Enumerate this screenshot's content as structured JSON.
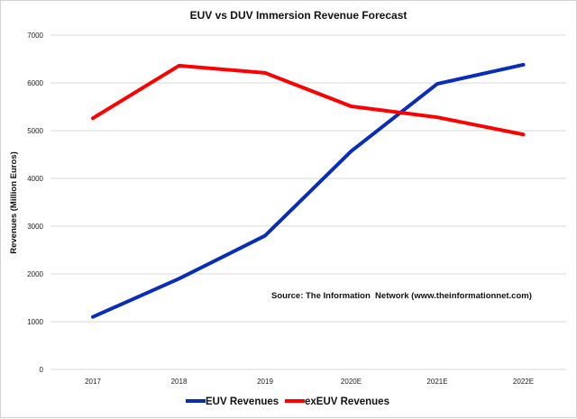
{
  "chart_data": {
    "type": "line",
    "title": "EUV vs DUV Immersion Revenue Forecast",
    "xlabel": "",
    "ylabel": "Revenues (Million Euros)",
    "categories": [
      "2017",
      "2018",
      "2019",
      "2020E",
      "2021E",
      "2022E"
    ],
    "ylim": [
      0,
      7000
    ],
    "yticks": [
      0,
      1000,
      2000,
      3000,
      4000,
      5000,
      6000,
      7000
    ],
    "ytick_labels": [
      "0",
      "1000",
      "2000",
      "3000",
      "4000",
      "5000",
      "6000",
      "7000"
    ],
    "grid": true,
    "legend_position": "bottom",
    "annotation": "Source: The Information  Network (www.theinformationnet.com)",
    "series": [
      {
        "name": "EUV Revenues",
        "color": "#0a2db8",
        "values": [
          1100,
          1900,
          2800,
          4570,
          5980,
          6380
        ]
      },
      {
        "name": "exEUV Revenues",
        "color": "#ff0000",
        "values": [
          5260,
          6360,
          6210,
          5510,
          5280,
          4920
        ]
      }
    ]
  }
}
